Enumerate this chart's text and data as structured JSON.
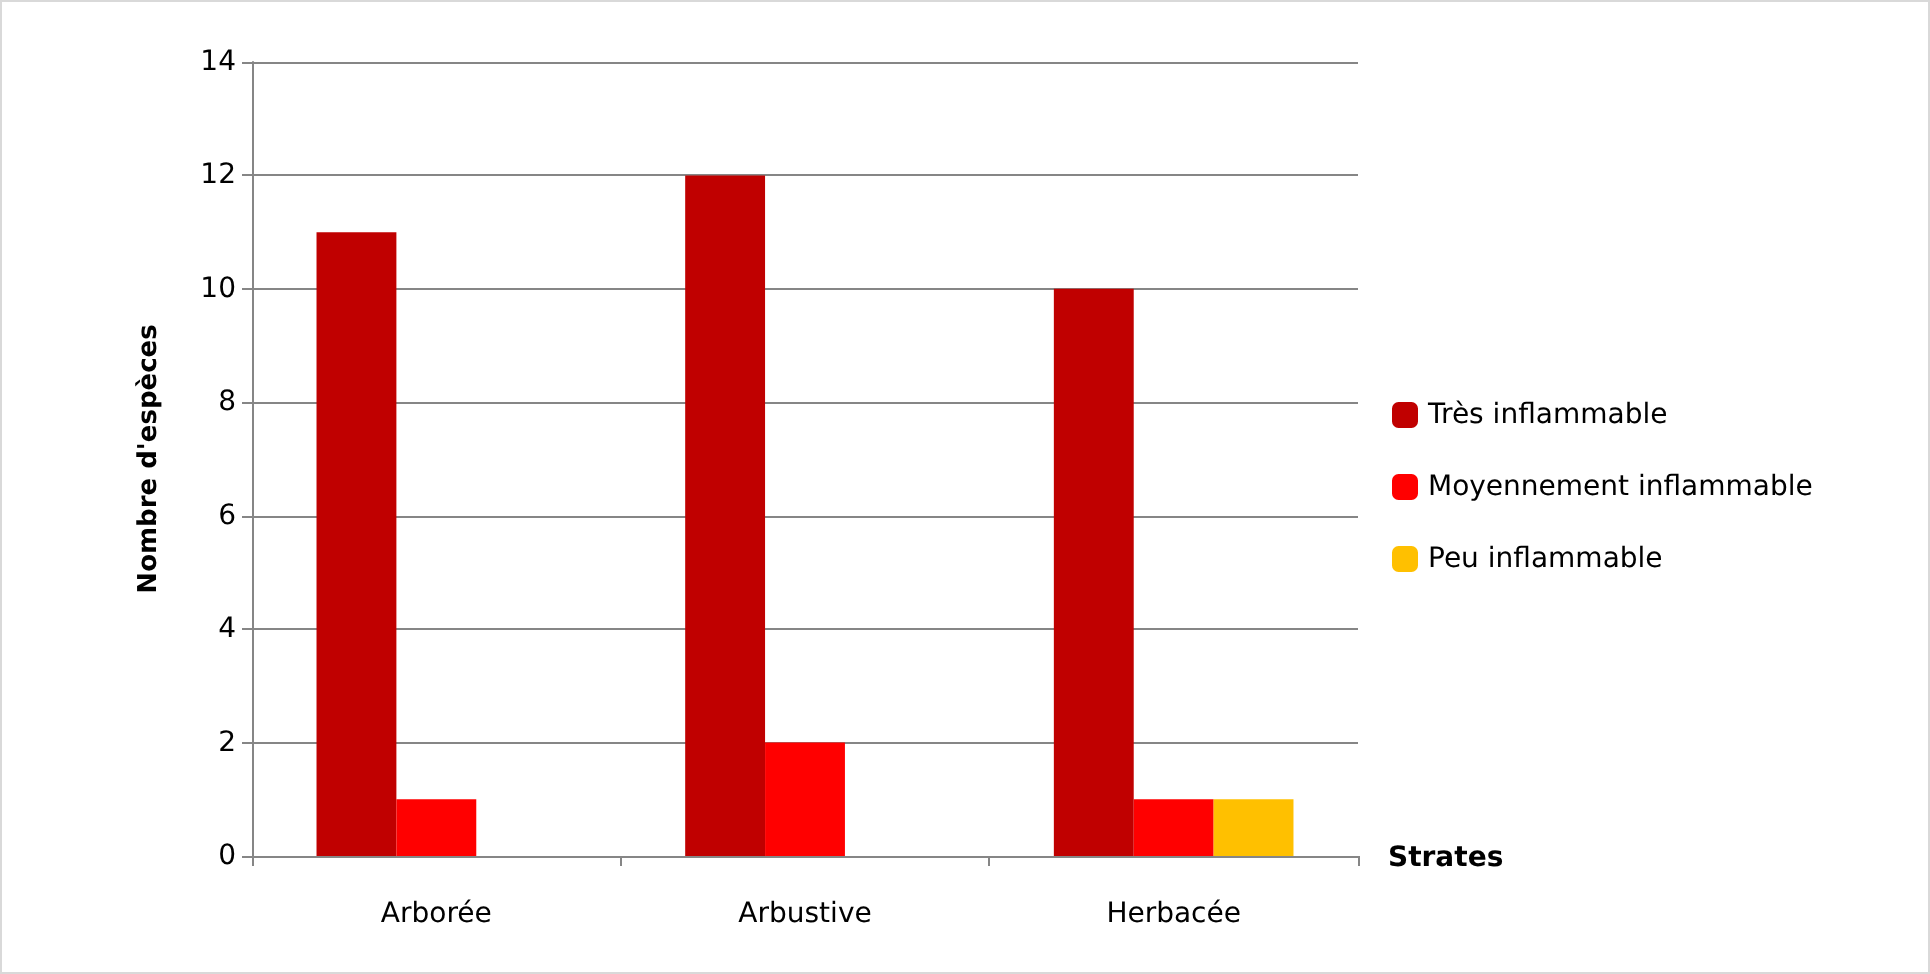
{
  "chart_data": {
    "type": "bar",
    "xlabel": "Strates",
    "ylabel": "Nombre d'espèces",
    "categories": [
      "Arborée",
      "Arbustive",
      "Herbacée"
    ],
    "series": [
      {
        "name": "Très inflammable",
        "color": "#c00000",
        "values": [
          11,
          12,
          10
        ]
      },
      {
        "name": "Moyennement inflammable",
        "color": "#ff0000",
        "values": [
          1,
          2,
          1
        ]
      },
      {
        "name": "Peu inflammable",
        "color": "#ffc000",
        "values": [
          0,
          0,
          1
        ]
      }
    ],
    "ylim": [
      0,
      14
    ],
    "yticks": [
      0,
      2,
      4,
      6,
      8,
      10,
      12,
      14
    ],
    "grid": "y",
    "legend": "right"
  }
}
